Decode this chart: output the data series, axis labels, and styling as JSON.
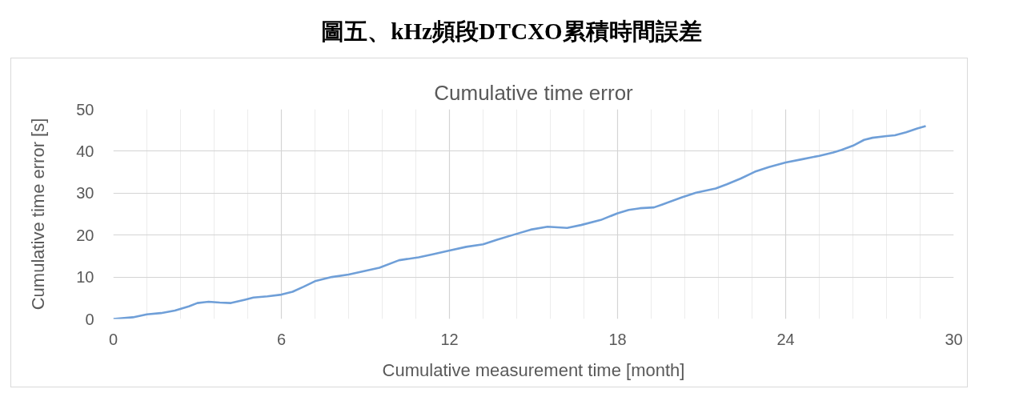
{
  "chart_data": {
    "type": "line",
    "title": "圖五、kHz頻段DTCXO累積時間誤差",
    "subtitle": "Cumulative time error",
    "xlabel": "Cumulative measurement time [month]",
    "ylabel": "Cumulative time error [s]",
    "x": [
      0,
      0.7,
      1.2,
      1.7,
      2.2,
      2.7,
      3.0,
      3.4,
      3.8,
      4.2,
      4.7,
      5.0,
      5.5,
      6.0,
      6.4,
      6.8,
      7.2,
      7.8,
      8.4,
      9.5,
      10.2,
      10.9,
      11.4,
      12.0,
      12.6,
      13.2,
      13.7,
      14.4,
      14.9,
      15.5,
      16.2,
      16.7,
      17.4,
      18.0,
      18.4,
      18.8,
      19.3,
      19.6,
      20.3,
      20.8,
      21.5,
      21.9,
      22.4,
      22.9,
      23.4,
      24.0,
      24.6,
      25.2,
      25.7,
      26.0,
      26.4,
      26.8,
      27.1,
      27.6,
      27.9,
      28.3,
      28.7,
      29.0
    ],
    "series": [
      {
        "color": "#6f9fd8",
        "values": [
          0,
          0.4,
          1.1,
          1.4,
          2.0,
          3.0,
          3.8,
          4.1,
          3.9,
          3.8,
          4.6,
          5.1,
          5.4,
          5.8,
          6.5,
          7.7,
          9.0,
          10.0,
          10.6,
          12.2,
          14.0,
          14.7,
          15.4,
          16.3,
          17.2,
          17.8,
          18.9,
          20.3,
          21.3,
          22.0,
          21.7,
          22.4,
          23.6,
          25.2,
          26.0,
          26.4,
          26.6,
          27.3,
          29.0,
          30.1,
          31.1,
          32.1,
          33.5,
          35.1,
          36.2,
          37.3,
          38.1,
          38.9,
          39.7,
          40.3,
          41.3,
          42.7,
          43.2,
          43.6,
          43.8,
          44.5,
          45.4,
          46.0
        ]
      }
    ],
    "xlim": [
      0,
      30
    ],
    "ylim": [
      0,
      50
    ],
    "xticks": [
      0,
      {
        "value": 1.2,
        "label": null
      },
      {
        "value": 2.4,
        "label": null
      },
      {
        "value": 3.6,
        "label": null
      },
      {
        "value": 4.8,
        "label": null
      },
      6,
      {
        "value": 7.2,
        "label": null
      },
      {
        "value": 8.4,
        "label": null
      },
      {
        "value": 9.6,
        "label": null
      },
      {
        "value": 10.8,
        "label": null
      },
      12,
      {
        "value": 13.2,
        "label": null
      },
      {
        "value": 14.4,
        "label": null
      },
      {
        "value": 15.6,
        "label": null
      },
      {
        "value": 16.8,
        "label": null
      },
      18,
      {
        "value": 19.2,
        "label": null
      },
      {
        "value": 20.4,
        "label": null
      },
      {
        "value": 21.6,
        "label": null
      },
      {
        "value": 22.8,
        "label": null
      },
      24,
      {
        "value": 25.2,
        "label": null
      },
      {
        "value": 26.4,
        "label": null
      },
      {
        "value": 27.6,
        "label": null
      },
      {
        "value": 28.8,
        "label": null
      },
      30
    ],
    "yticks": [
      0,
      10,
      20,
      30,
      40,
      50
    ],
    "grid": true,
    "line_style": "solid"
  }
}
